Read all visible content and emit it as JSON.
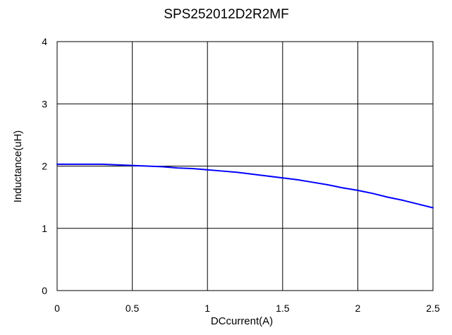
{
  "chart_data": {
    "type": "line",
    "title": "SPS252012D2R2MF",
    "xlabel": "DCcurrent(A)",
    "ylabel": "Inductance(uH)",
    "xlim": [
      0,
      2.5
    ],
    "ylim": [
      0,
      4
    ],
    "x_ticks": [
      "0",
      "0.5",
      "1",
      "1.5",
      "2",
      "2.5"
    ],
    "y_ticks": [
      "0",
      "1",
      "2",
      "3",
      "4"
    ],
    "grid": true,
    "legend": "none",
    "series": [
      {
        "color": "#0000ff",
        "x": [
          0,
          0.1,
          0.2,
          0.3,
          0.4,
          0.5,
          0.6,
          0.7,
          0.8,
          0.9,
          1.0,
          1.1,
          1.2,
          1.3,
          1.4,
          1.5,
          1.6,
          1.7,
          1.8,
          1.9,
          2.0,
          2.1,
          2.2,
          2.3,
          2.4,
          2.5
        ],
        "y": [
          2.03,
          2.03,
          2.03,
          2.03,
          2.02,
          2.01,
          2.0,
          1.99,
          1.97,
          1.96,
          1.94,
          1.92,
          1.9,
          1.87,
          1.84,
          1.81,
          1.78,
          1.74,
          1.7,
          1.65,
          1.61,
          1.56,
          1.5,
          1.45,
          1.39,
          1.33
        ]
      }
    ]
  },
  "colors": {
    "background": "#ffffff",
    "grid": "#000000",
    "line": "#0000ff"
  }
}
